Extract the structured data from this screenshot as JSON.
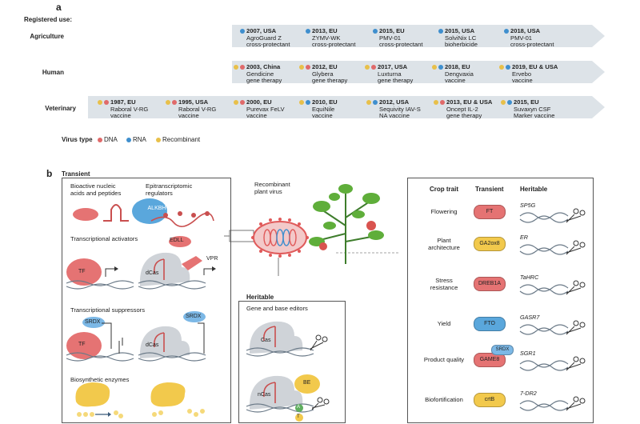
{
  "panel_a": {
    "letter": "a",
    "registered_use": "Registered use:",
    "rows": [
      {
        "label": "Agriculture",
        "entries": [
          {
            "year": "2007, USA",
            "l1": "AgroGuard Z",
            "l2": "cross-protectant",
            "dots": [
              "#3f8fce"
            ]
          },
          {
            "year": "2013, EU",
            "l1": "ZYMV-WK",
            "l2": "cross-protectant",
            "dots": [
              "#3f8fce"
            ]
          },
          {
            "year": "2015, EU",
            "l1": "PMV-01",
            "l2": "cross-protectant",
            "dots": [
              "#3f8fce"
            ]
          },
          {
            "year": "2015, USA",
            "l1": "SolviNix LC",
            "l2": "bioherbicide",
            "dots": [
              "#3f8fce"
            ]
          },
          {
            "year": "2018, USA",
            "l1": "PMV-01",
            "l2": "cross-protectant",
            "dots": [
              "#3f8fce"
            ]
          }
        ]
      },
      {
        "label": "Human",
        "entries": [
          {
            "year": "2003, China",
            "l1": "Gendicine",
            "l2": "gene therapy",
            "dots": [
              "#e8c04a",
              "#e06a6a"
            ]
          },
          {
            "year": "2012, EU",
            "l1": "Glybera",
            "l2": "gene therapy",
            "dots": [
              "#e8c04a",
              "#e06a6a"
            ]
          },
          {
            "year": "2017, USA",
            "l1": "Luxturna",
            "l2": "gene therapy",
            "dots": [
              "#e8c04a",
              "#e06a6a"
            ]
          },
          {
            "year": "2018, EU",
            "l1": "Dengvaxia",
            "l2": "vaccine",
            "dots": [
              "#e8c04a",
              "#3f8fce"
            ]
          },
          {
            "year": "2019, EU & USA",
            "l1": "Ervebo",
            "l2": "vaccine",
            "dots": [
              "#e8c04a",
              "#3f8fce"
            ]
          }
        ]
      },
      {
        "label": "Veterinary",
        "entries": [
          {
            "year": "1987, EU",
            "l1": "Raboral V-RG",
            "l2": "vaccine",
            "dots": [
              "#e8c04a",
              "#e06a6a"
            ]
          },
          {
            "year": "1995, USA",
            "l1": "Raboral V-RG",
            "l2": "vaccine",
            "dots": [
              "#e8c04a",
              "#e06a6a"
            ]
          },
          {
            "year": "2000, EU",
            "l1": "Purevax FeLV",
            "l2": "vaccine",
            "dots": [
              "#e8c04a",
              "#e06a6a"
            ]
          },
          {
            "year": "2010, EU",
            "l1": "EquiNile",
            "l2": "vaccine",
            "dots": [
              "#e8c04a",
              "#3f8fce"
            ]
          },
          {
            "year": "2012, USA",
            "l1": "Sequivity IAV-S",
            "l2": "NA vaccine",
            "dots": [
              "#e8c04a",
              "#3f8fce"
            ]
          },
          {
            "year": "2013, EU & USA",
            "l1": "Oncept IL-2",
            "l2": "gene therapy",
            "dots": [
              "#e8c04a",
              "#e06a6a"
            ]
          },
          {
            "year": "2015, EU",
            "l1": "Suvaxyn CSF",
            "l2": "Marker vaccine",
            "dots": [
              "#e8c04a",
              "#3f8fce"
            ]
          }
        ]
      }
    ],
    "legend": {
      "title": "Virus type",
      "items": [
        {
          "label": "DNA",
          "color": "#e06a6a"
        },
        {
          "label": "RNA",
          "color": "#3f8fce"
        },
        {
          "label": "Recombinant",
          "color": "#e8c04a"
        }
      ]
    }
  },
  "panel_b": {
    "letter": "b",
    "transient_title": "Transient",
    "bioactive": "Bioactive nucleic\nacids and peptides",
    "epitranscriptomic": "Epitranscriptomic\nregulators",
    "alkbh": "ALKBH",
    "activators": "Transcriptional activators",
    "edll": "EDLL",
    "vpr": "VPR",
    "tf": "TF",
    "dcas": "dCas",
    "suppressors": "Transcriptional suppressors",
    "srdx": "SRDX",
    "biosynthetic": "Biosynthetic enzymes",
    "recombinant_virus": "Recombinant\nplant virus",
    "heritable_title": "Heritable",
    "gene_editors": "Gene and base editors",
    "cas": "Cas",
    "ncas": "nCas",
    "be": "BE",
    "base_a": "A",
    "base_t": "T",
    "table": {
      "col_trait": "Crop trait",
      "col_transient": "Transient",
      "col_heritable": "Heritable",
      "rows": [
        {
          "trait": "Flowering",
          "transient": "FT",
          "heritable": "SP5G",
          "color": "#e57373"
        },
        {
          "trait": "Plant\narchitecture",
          "transient": "GA2ox8",
          "heritable": "ER",
          "color": "#f2c94c"
        },
        {
          "trait": "Stress\nresistance",
          "transient": "DREB1A",
          "heritable": "TaHRC",
          "color": "#e57373"
        },
        {
          "trait": "Yield",
          "transient": "FTO",
          "heritable": "GASR7",
          "color": "#5aa7dc"
        },
        {
          "trait": "Product quality",
          "transient": "GAME8",
          "heritable": "SGR1",
          "color": "#e57373",
          "extra": "SRDX"
        },
        {
          "trait": "Biofortification",
          "transient": "crtB",
          "heritable": "7-DR2",
          "color": "#f2c94c"
        }
      ]
    }
  }
}
